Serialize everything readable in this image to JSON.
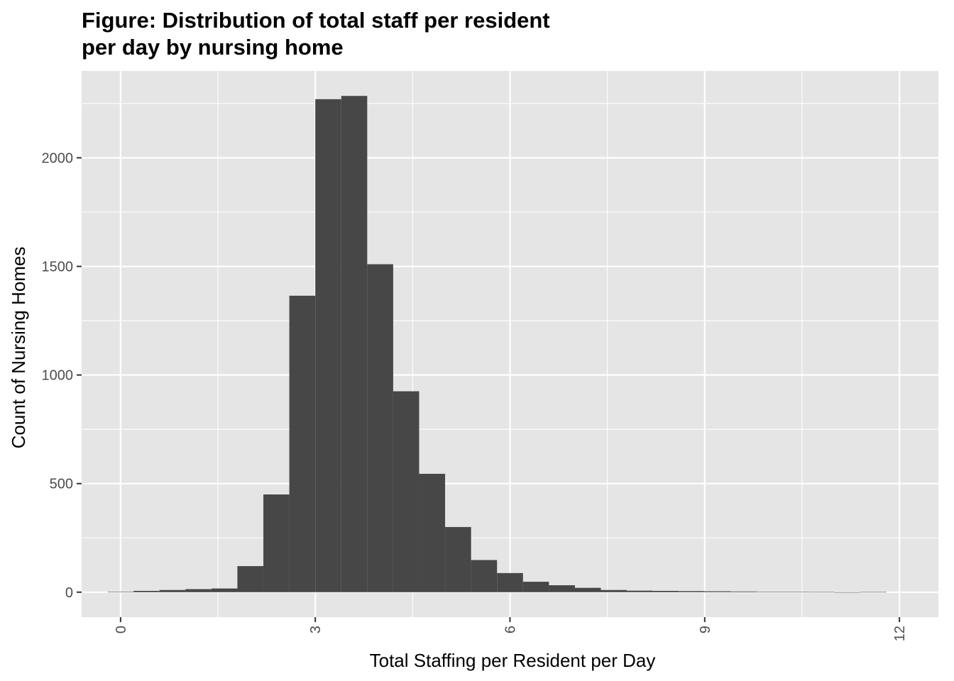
{
  "chart_data": {
    "type": "bar",
    "title_lines": [
      "Figure: Distribution of total staff per resident",
      "per day by nursing home"
    ],
    "xlabel": "Total Staffing per Resident per Day",
    "ylabel": "Count of Nursing Homes",
    "xlim": [
      -0.6,
      12.6
    ],
    "ylim": [
      -115,
      2400
    ],
    "x_ticks": [
      0,
      3,
      6,
      9,
      12
    ],
    "x_tick_labels": [
      "0",
      "3",
      "6",
      "9",
      "12"
    ],
    "y_ticks": [
      0,
      500,
      1000,
      1500,
      2000
    ],
    "y_tick_labels": [
      "0",
      "500",
      "1000",
      "1500",
      "2000"
    ],
    "grid": true,
    "bin_width": 0.4,
    "bin_centers": [
      0.0,
      0.4,
      0.8,
      1.2,
      1.6,
      2.0,
      2.4,
      2.8,
      3.2,
      3.6,
      4.0,
      4.4,
      4.8,
      5.2,
      5.6,
      6.0,
      6.4,
      6.8,
      7.2,
      7.6,
      8.0,
      8.4,
      8.8,
      9.2,
      9.6,
      10.0,
      10.4,
      10.8,
      11.2,
      11.6
    ],
    "values": [
      2,
      6,
      10,
      14,
      17,
      120,
      450,
      1365,
      2270,
      2285,
      1510,
      925,
      545,
      300,
      148,
      88,
      48,
      32,
      20,
      10,
      7,
      6,
      5,
      4,
      3,
      2,
      2,
      1,
      0,
      1
    ],
    "bar_color": "#474747",
    "panel_background": "#e5e5e5",
    "grid_color": "#ffffff"
  }
}
